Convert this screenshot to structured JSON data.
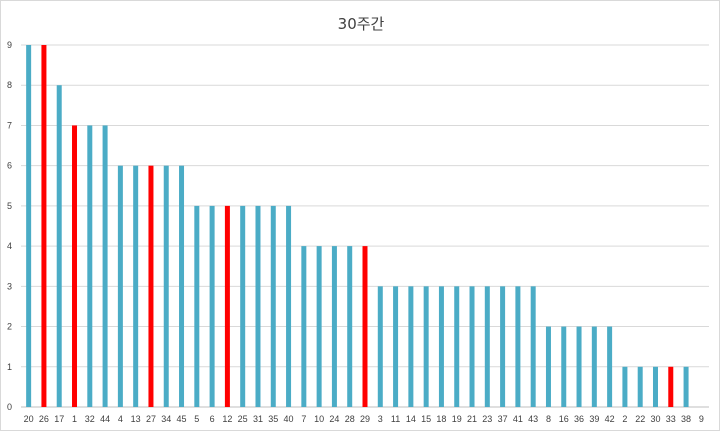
{
  "chart_data": {
    "type": "bar",
    "title": "30주간",
    "xlabel": "",
    "ylabel": "",
    "ylim": [
      0,
      9
    ],
    "yticks": [
      0,
      1,
      2,
      3,
      4,
      5,
      6,
      7,
      8,
      9
    ],
    "grid": true,
    "legend": "none",
    "categories": [
      "20",
      "26",
      "17",
      "1",
      "32",
      "44",
      "4",
      "13",
      "27",
      "34",
      "45",
      "5",
      "6",
      "12",
      "25",
      "31",
      "35",
      "40",
      "7",
      "10",
      "24",
      "28",
      "29",
      "3",
      "11",
      "14",
      "15",
      "18",
      "19",
      "21",
      "23",
      "37",
      "41",
      "43",
      "8",
      "16",
      "36",
      "39",
      "42",
      "2",
      "22",
      "30",
      "33",
      "38",
      "9"
    ],
    "values": [
      9,
      9,
      8,
      7,
      7,
      7,
      6,
      6,
      6,
      6,
      6,
      5,
      5,
      5,
      5,
      5,
      5,
      5,
      4,
      4,
      4,
      4,
      4,
      3,
      3,
      3,
      3,
      3,
      3,
      3,
      3,
      3,
      3,
      3,
      2,
      2,
      2,
      2,
      2,
      1,
      1,
      1,
      1,
      1,
      0
    ],
    "highlighted": [
      "26",
      "1",
      "27",
      "12",
      "29",
      "33"
    ],
    "colors": {
      "default": "#4bacc6",
      "highlight": "#ff0000",
      "grid": "#d9d9d9",
      "axis": "#bfbfbf"
    }
  }
}
